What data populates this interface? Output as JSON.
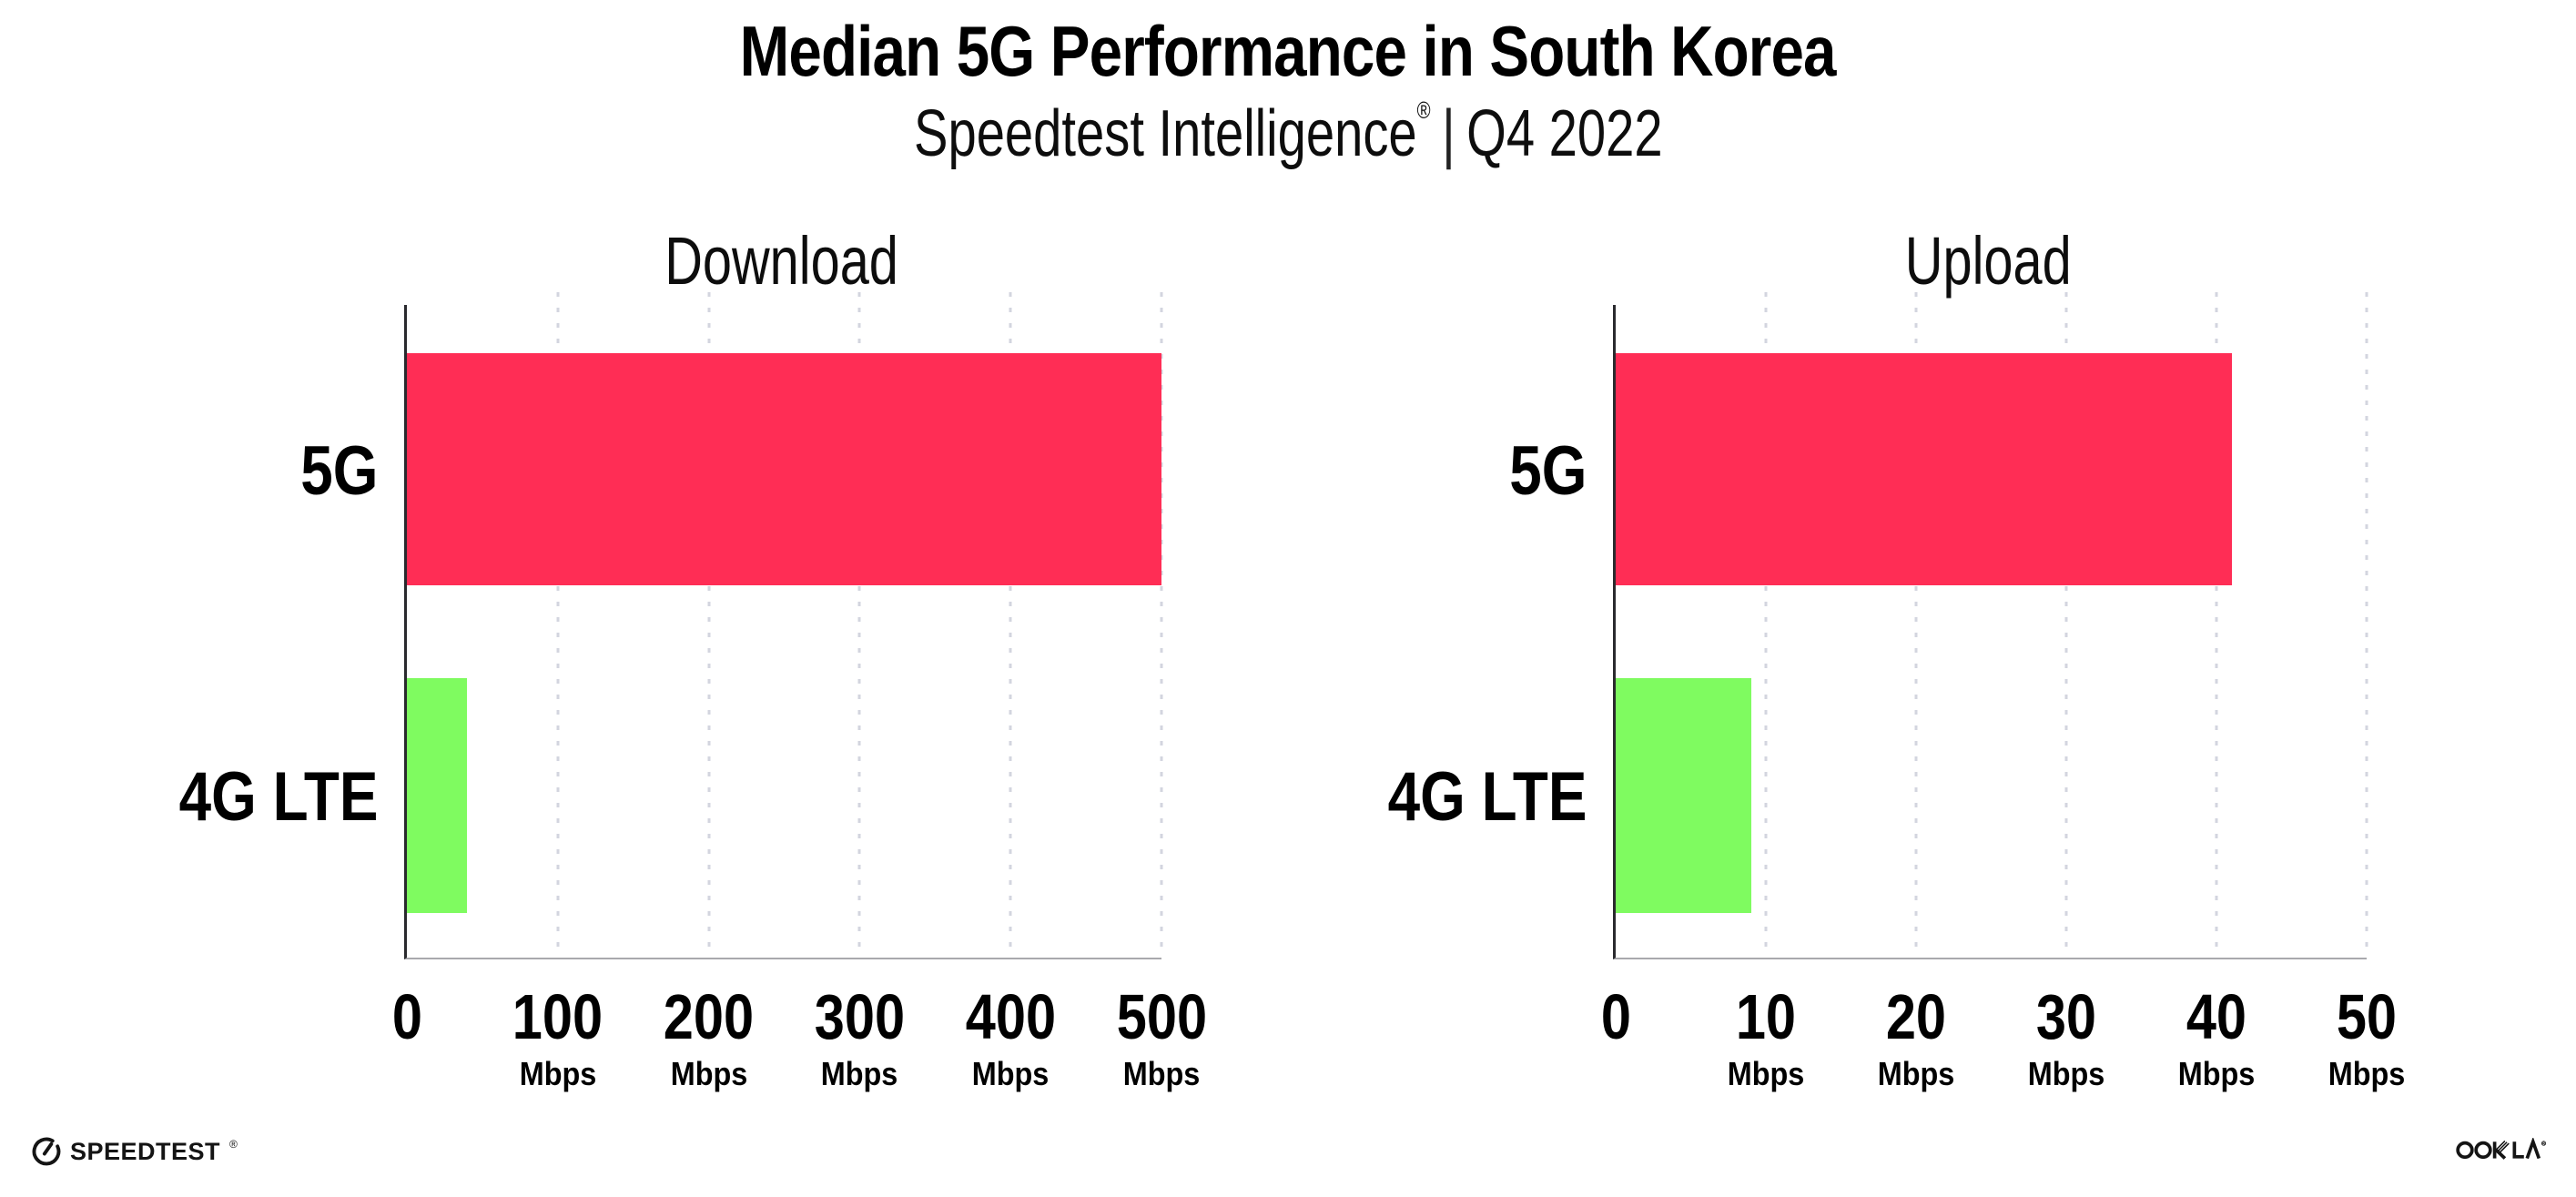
{
  "header": {
    "title": "Median 5G Performance in South Korea",
    "subtitle_brand": "Speedtest Intelligence",
    "subtitle_reg_mark": "®",
    "subtitle_separator": "|",
    "subtitle_period": "Q4 2022"
  },
  "colors": {
    "bar_5g": "#FF2D55",
    "bar_4g_lte": "#7FFB60",
    "axis_spine": "#2a2a2e",
    "axis_baseline": "#a9a9ad",
    "grid_dot": "#d3d5df",
    "text": "#000000"
  },
  "chart_data": [
    {
      "type": "bar",
      "orientation": "horizontal",
      "title": "Download",
      "categories": [
        "5G",
        "4G LTE"
      ],
      "values": [
        500,
        40
      ],
      "unit": "Mbps",
      "xlabel": "",
      "ylabel": "",
      "xlim": [
        0,
        500
      ],
      "xticks": [
        0,
        100,
        200,
        300,
        400,
        500
      ],
      "bar_colors": [
        "#FF2D55",
        "#7FFB60"
      ],
      "grid": "vertical-dotted",
      "legend": "none",
      "value_labels_shown": false
    },
    {
      "type": "bar",
      "orientation": "horizontal",
      "title": "Upload",
      "categories": [
        "5G",
        "4G LTE"
      ],
      "values": [
        41,
        9
      ],
      "unit": "Mbps",
      "xlabel": "",
      "ylabel": "",
      "xlim": [
        0,
        50
      ],
      "xticks": [
        0,
        10,
        20,
        30,
        40,
        50
      ],
      "bar_colors": [
        "#FF2D55",
        "#7FFB60"
      ],
      "grid": "vertical-dotted",
      "legend": "none",
      "value_labels_shown": false
    }
  ],
  "footer": {
    "speedtest_logo_text": "SPEEDTEST",
    "speedtest_mark": "®",
    "ookla_logo_text": "OOKLA",
    "ookla_mark": "®"
  }
}
